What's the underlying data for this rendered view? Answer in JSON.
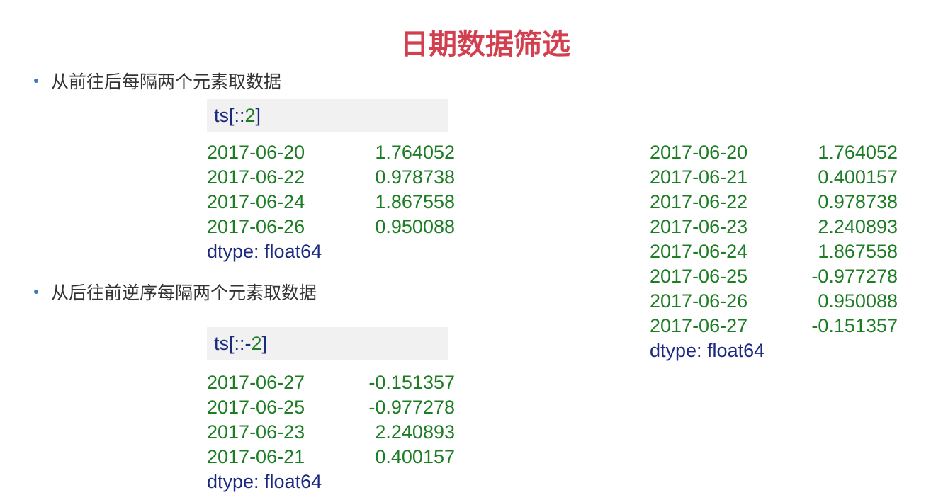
{
  "title": "日期数据筛选",
  "section1": {
    "bullet": "从前往后每隔两个元素取数据",
    "code_prefix": "ts[::",
    "code_num": "2",
    "code_suffix": "]",
    "rows": [
      {
        "date": "2017-06-20",
        "value": "1.764052"
      },
      {
        "date": "2017-06-22",
        "value": "0.978738"
      },
      {
        "date": "2017-06-24",
        "value": "1.867558"
      },
      {
        "date": "2017-06-26",
        "value": "0.950088"
      }
    ],
    "dtype": "dtype: float64"
  },
  "section2": {
    "bullet": "从后往前逆序每隔两个元素取数据",
    "code_prefix": "ts[::-",
    "code_num": "2",
    "code_suffix": "]",
    "rows": [
      {
        "date": "2017-06-27",
        "value": "-0.151357"
      },
      {
        "date": "2017-06-25",
        "value": "-0.977278"
      },
      {
        "date": "2017-06-23",
        "value": "2.240893"
      },
      {
        "date": "2017-06-21",
        "value": "0.400157"
      }
    ],
    "dtype": "dtype: float64"
  },
  "full_series": {
    "rows": [
      {
        "date": "2017-06-20",
        "value": "1.764052"
      },
      {
        "date": "2017-06-21",
        "value": "0.400157"
      },
      {
        "date": "2017-06-22",
        "value": "0.978738"
      },
      {
        "date": "2017-06-23",
        "value": "2.240893"
      },
      {
        "date": "2017-06-24",
        "value": "1.867558"
      },
      {
        "date": "2017-06-25",
        "value": "-0.977278"
      },
      {
        "date": "2017-06-26",
        "value": "0.950088"
      },
      {
        "date": "2017-06-27",
        "value": "-0.151357"
      }
    ],
    "dtype": "dtype: float64"
  },
  "colors": {
    "title": "#d2404f",
    "code_text": "#1b2a80",
    "number": "#1d7d24",
    "bullet_dot": "#3b78c2"
  }
}
